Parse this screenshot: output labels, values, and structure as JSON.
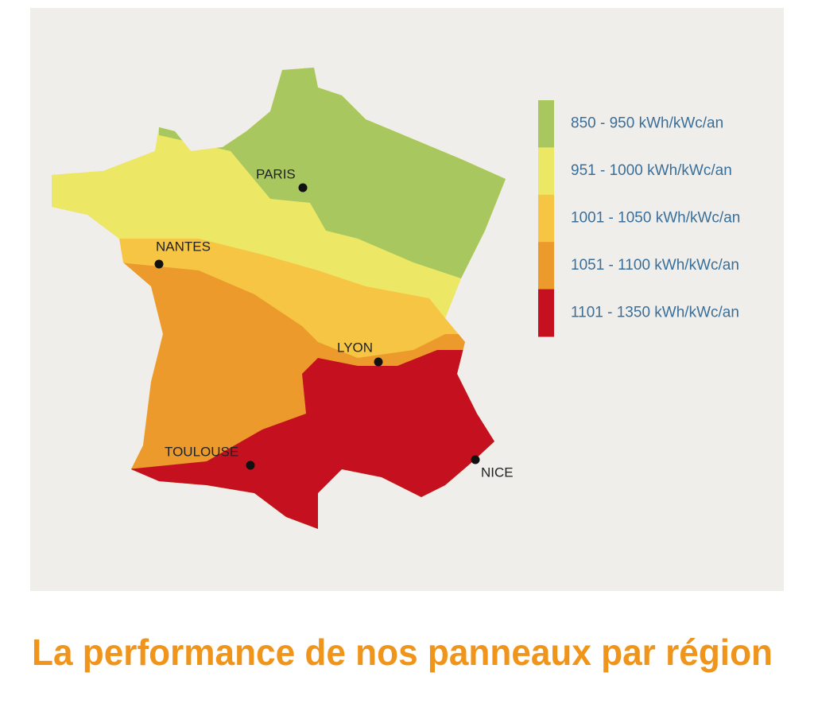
{
  "map": {
    "cities": [
      {
        "label": "PARIS"
      },
      {
        "label": "NANTES"
      },
      {
        "label": "LYON"
      },
      {
        "label": "TOULOUSE"
      },
      {
        "label": "NICE"
      }
    ],
    "legend": [
      {
        "label": "850 - 950 kWh/kWc/an",
        "color": "#a8c85f"
      },
      {
        "label": "951 - 1000 kWh/kWc/an",
        "color": "#ece866"
      },
      {
        "label": "1001 - 1050 kWh/kWc/an",
        "color": "#f6c544"
      },
      {
        "label": "1051 - 1100 kWh/kWc/an",
        "color": "#ec9a2c"
      },
      {
        "label": "1101 - 1350 kWh/kWc/an",
        "color": "#c5111f"
      }
    ]
  },
  "caption": "La performance de nos panneaux par région"
}
